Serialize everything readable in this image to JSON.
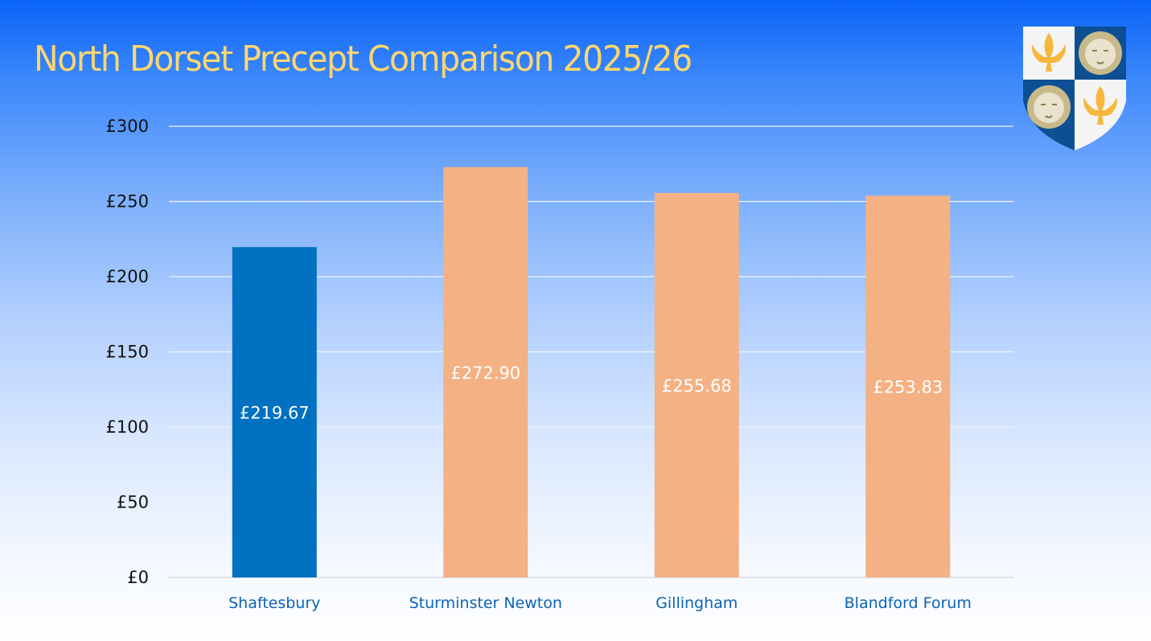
{
  "title": "North Dorset Precept Comparison 2025/26",
  "logo": {
    "name": "town-crest",
    "quarters": [
      "fleur-de-lis",
      "lion-face",
      "lion-face",
      "fleur-de-lis"
    ]
  },
  "colors": {
    "highlight": "#0070c0",
    "others": "#f4b183",
    "title": "#ffd66e",
    "xlabel": "#0b63b5",
    "grid": "#e0e6ee"
  },
  "chart_data": {
    "type": "bar",
    "title": "North Dorset Precept Comparison 2025/26",
    "xlabel": "",
    "ylabel": "",
    "categories": [
      "Shaftesbury",
      "Sturminster Newton",
      "Gillingham",
      "Blandford Forum"
    ],
    "values": [
      219.67,
      272.9,
      255.68,
      253.83
    ],
    "data_labels": [
      "£219.67",
      "£272.90",
      "£255.68",
      "£253.83"
    ],
    "bar_colors": [
      "#0070c0",
      "#f4b183",
      "#f4b183",
      "#f4b183"
    ],
    "ylim": [
      0,
      300
    ],
    "yticks": [
      0,
      50,
      100,
      150,
      200,
      250,
      300
    ],
    "ytick_labels": [
      "£0",
      "£50",
      "£100",
      "£150",
      "£200",
      "£250",
      "£300"
    ],
    "grid": true,
    "legend": "none"
  }
}
